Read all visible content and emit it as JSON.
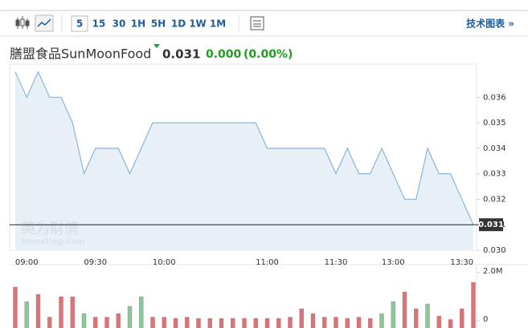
{
  "toolbar": {
    "intervals": [
      "5",
      "15",
      "30",
      "1H",
      "5H",
      "1D",
      "1W",
      "1M"
    ],
    "selected_interval": 0,
    "link": "技术图表 »"
  },
  "header": {
    "name": "膳盟食品SunMoonFood",
    "price": "0.031",
    "change": "0.000",
    "change_pct": "(0.00%)"
  },
  "chart_data": [
    {
      "type": "area",
      "color": "#8db4d8",
      "fill": "#e3edf4",
      "categories": [
        null,
        "09:00",
        null,
        null,
        null,
        null,
        null,
        "09:30",
        null,
        null,
        null,
        null,
        null,
        "10:00",
        null,
        null,
        null,
        null,
        null,
        null,
        null,
        null,
        "11:00",
        null,
        null,
        null,
        null,
        null,
        "11:30",
        null,
        null,
        null,
        null,
        "13:00",
        null,
        null,
        null,
        null,
        null,
        "13:30",
        null
      ],
      "values": [
        0.037,
        0.036,
        0.037,
        0.036,
        0.036,
        0.035,
        0.033,
        0.034,
        0.034,
        0.034,
        0.033,
        0.034,
        0.035,
        0.035,
        0.035,
        0.035,
        0.035,
        0.035,
        0.035,
        0.035,
        0.035,
        0.035,
        0.034,
        0.034,
        0.034,
        0.034,
        0.034,
        0.034,
        0.033,
        0.034,
        0.033,
        0.033,
        0.034,
        0.033,
        0.032,
        0.032,
        0.034,
        0.033,
        0.033,
        0.032,
        0.031
      ],
      "last_label": "0.031",
      "ylim": [
        0.03,
        0.0373
      ],
      "yticks": [
        {
          "value": 0.03,
          "label": "0.030"
        },
        0.031,
        0.032,
        0.033,
        0.034,
        0.035,
        0.036
      ],
      "watermark": [
        "英为财情",
        "Investing.com"
      ]
    },
    {
      "type": "bar",
      "values": [
        1400000,
        800000,
        1100000,
        150000,
        1000000,
        1000000,
        300000,
        150000,
        150000,
        300000,
        600000,
        1000000,
        150000,
        150000,
        100000,
        150000,
        100000,
        100000,
        100000,
        100000,
        100000,
        100000,
        100000,
        100000,
        150000,
        500000,
        300000,
        150000,
        150000,
        100000,
        150000,
        100000,
        300000,
        800000,
        1200000,
        500000,
        700000,
        200000,
        50000,
        500000,
        1600000
      ],
      "colors": [
        "#d9757a",
        "#86c99b",
        "#d9757a",
        "#d9757a",
        "#d9757a",
        "#d9757a",
        "#86c99b",
        "#d9757a",
        "#d9757a",
        "#d9757a",
        "#86c99b",
        "#86c99b",
        "#d9757a",
        "#d9757a",
        "#d9757a",
        "#d9757a",
        "#d9757a",
        "#d9757a",
        "#d9757a",
        "#d9757a",
        "#d9757a",
        "#d9757a",
        "#d9757a",
        "#d9757a",
        "#d9757a",
        "#d9757a",
        "#d9757a",
        "#d9757a",
        "#d9757a",
        "#d9757a",
        "#d9757a",
        "#d9757a",
        "#86c99b",
        "#86c99b",
        "#d9757a",
        "#d9757a",
        "#86c99b",
        "#d9757a",
        "#d9757a",
        "#d9757a",
        "#d9757a"
      ],
      "ylim": [
        0,
        2000000
      ],
      "yticks": [
        0,
        {
          "value": 2000000,
          "label": "2.0M"
        }
      ]
    }
  ]
}
